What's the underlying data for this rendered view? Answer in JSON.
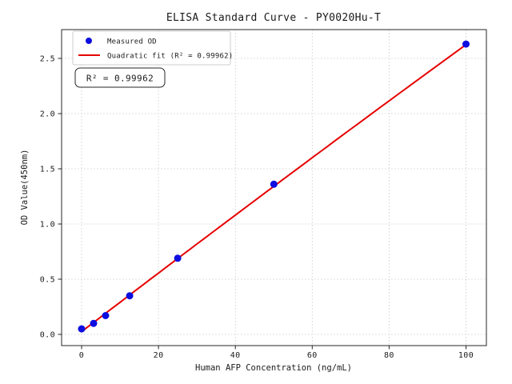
{
  "figure": {
    "title": "ELISA Standard Curve - PY0020Hu-T",
    "annotation_text": "R² = 0.99962"
  },
  "chart_data": {
    "type": "scatter",
    "title": "ELISA Standard Curve - PY0020Hu-T",
    "xlabel": "Human AFP Concentration (ng/mL)",
    "ylabel": "OD Value(450nm)",
    "x_ticks": [
      "0",
      "20",
      "40",
      "60",
      "80",
      "100"
    ],
    "x_tick_values": [
      0,
      20,
      40,
      60,
      80,
      100
    ],
    "y_ticks": [
      "0.0",
      "0.5",
      "1.0",
      "1.5",
      "2.0",
      "2.5"
    ],
    "y_tick_values": [
      0.0,
      0.5,
      1.0,
      1.5,
      2.0,
      2.5
    ],
    "xlim": [
      -5.2,
      105.3
    ],
    "ylim": [
      -0.1,
      2.76
    ],
    "grid": true,
    "grid_style": "dotted",
    "grid_color": "#c9c9c9",
    "legend": {
      "position": "upper-left",
      "entries": [
        {
          "label": "Measured OD",
          "marker": "circle",
          "color": "#0b0bе0"
        },
        {
          "label": "Quadratic fit (R² = 0.99962)",
          "marker": "line",
          "color": "#e60000"
        }
      ]
    },
    "series": [
      {
        "name": "Measured OD",
        "type": "scatter",
        "color": "#0d0de0",
        "marker_radius": 4.5,
        "points": [
          [
            0,
            0.05
          ],
          [
            3.125,
            0.1
          ],
          [
            6.25,
            0.17
          ],
          [
            12.5,
            0.35
          ],
          [
            25,
            0.69
          ],
          [
            50,
            1.36
          ],
          [
            100,
            2.63
          ]
        ]
      },
      {
        "name": "Quadratic fit",
        "type": "line",
        "color": "#e60000",
        "line_width": 2,
        "fit_coefficients": {
          "a": 0.025,
          "b": 0.02665,
          "c": -6.5e-06
        },
        "x_range": [
          0,
          100
        ]
      }
    ],
    "annotation": {
      "text": "R² = 0.99962"
    },
    "r_squared": 0.99962
  }
}
